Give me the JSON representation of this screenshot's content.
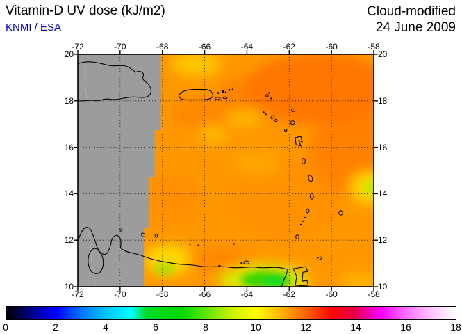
{
  "header": {
    "title": "Vitamin-D UV dose (kJ/m2)",
    "source": "KNMI / ESA",
    "mode_label": "Cloud-modified",
    "date_label": "24 June 2009"
  },
  "colors": {
    "source_blue": "#0000cc",
    "no_data_gray": "#9c9c9c",
    "dominant_field_orange": "#ff9800"
  },
  "chart_data": {
    "type": "heatmap",
    "title": "Vitamin-D UV dose (kJ/m2)",
    "mode": "Cloud-modified",
    "date": "24 June 2009",
    "source": "KNMI / ESA",
    "units": "kJ/m2",
    "region": "Caribbean (Hispaniola, Puerto Rico, Lesser Antilles, Venezuela coast)",
    "lon_range": [
      -72,
      -58
    ],
    "lat_range": [
      10,
      20
    ],
    "lon_ticks": [
      -72,
      -70,
      -68,
      -66,
      -64,
      -62,
      -60,
      -58
    ],
    "lat_ticks": [
      20,
      18,
      16,
      14,
      12,
      10
    ],
    "grid": "dotted graticule every 2 degrees, labels on all four sides",
    "no_data_region": "west of approx. -68.5 deg longitude shown as gray (no data)",
    "field_summary": "mostly 10.5-12 kJ/m2 (orange) with yellow patches near 9-10 and a green minimum of about 6-8 kJ/m2 along the Venezuelan coast near -63 to -61 lon, 10-11 lat",
    "approx_grid_values": {
      "lon": [
        -71,
        -69,
        -67,
        -65,
        -63,
        -61,
        -59
      ],
      "lat": [
        19,
        17,
        15,
        13,
        11
      ],
      "values_kj_m2": [
        [
          null,
          null,
          11,
          10.5,
          11,
          11.5,
          11.5
        ],
        [
          null,
          null,
          11,
          10.5,
          10.5,
          11,
          11.5
        ],
        [
          null,
          null,
          11,
          11,
          11,
          11,
          10
        ],
        [
          null,
          null,
          11,
          11,
          11,
          11,
          11
        ],
        [
          null,
          10,
          10.5,
          11,
          8,
          7,
          10.5
        ]
      ]
    },
    "colorbar": {
      "range": [
        0,
        18
      ],
      "ticks": [
        0,
        2,
        4,
        6,
        8,
        10,
        12,
        14,
        16,
        18
      ],
      "legend_position": "bottom",
      "stops": [
        {
          "value": 0,
          "color": "#000000"
        },
        {
          "value": 1,
          "color": "#00008c"
        },
        {
          "value": 2,
          "color": "#0000ff"
        },
        {
          "value": 3,
          "color": "#0074ff"
        },
        {
          "value": 4,
          "color": "#00c4ff"
        },
        {
          "value": 5,
          "color": "#00ffff"
        },
        {
          "value": 5.6,
          "color": "#00dc28"
        },
        {
          "value": 7,
          "color": "#00d800"
        },
        {
          "value": 8,
          "color": "#5ce600"
        },
        {
          "value": 9,
          "color": "#c8f000"
        },
        {
          "value": 10,
          "color": "#ffff00"
        },
        {
          "value": 11,
          "color": "#ffb400"
        },
        {
          "value": 12,
          "color": "#ff6400"
        },
        {
          "value": 13,
          "color": "#ff0a00"
        },
        {
          "value": 14,
          "color": "#e60050"
        },
        {
          "value": 15,
          "color": "#ff00ff"
        },
        {
          "value": 16,
          "color": "#ff6eff"
        },
        {
          "value": 17,
          "color": "#ffc3ff"
        },
        {
          "value": 18,
          "color": "#ffffff"
        }
      ]
    }
  }
}
